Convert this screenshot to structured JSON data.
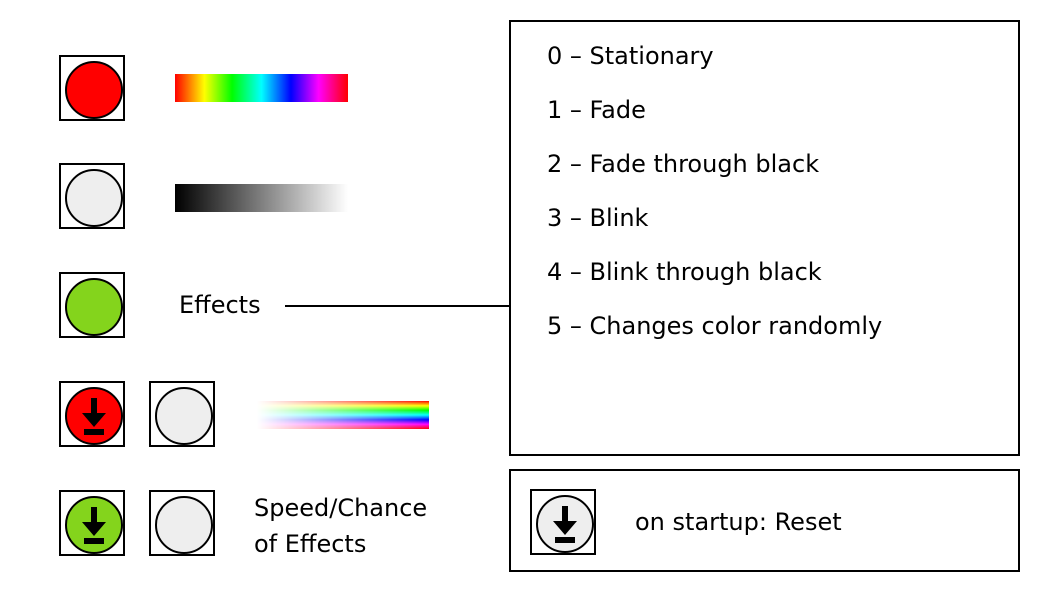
{
  "colors": {
    "red": "#ff0000",
    "light_gray": "#eeeeee",
    "green": "#84d41c"
  },
  "icons": {
    "download": "download-arrow-icon"
  },
  "labels": {
    "effects": "Effects",
    "speed_line1": "Speed/Chance",
    "speed_line2": "of Effects"
  },
  "effects_list": [
    "0 – Stationary",
    "1 – Fade",
    "2 – Fade through black",
    "3 – Blink",
    "4 – Blink through black",
    "5 – Changes color randomly"
  ],
  "startup": {
    "label": "on startup: Reset"
  }
}
